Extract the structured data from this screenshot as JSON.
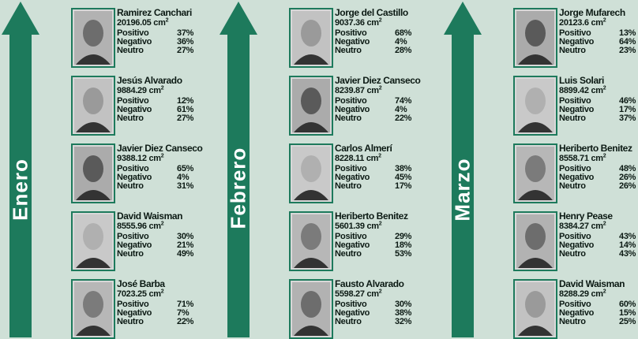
{
  "labels": {
    "positivo": "Positivo",
    "negativo": "Negativo",
    "neutro": "Neutro",
    "unit": "cm",
    "unit_exp": "2"
  },
  "months": [
    {
      "month": "Enero",
      "people": [
        {
          "name": "Ramirez Canchari",
          "area": "20196.05",
          "positivo": "37%",
          "negativo": "36%",
          "neutro": "27%"
        },
        {
          "name": "Jesús Alvarado",
          "area": "9884.29",
          "positivo": "12%",
          "negativo": "61%",
          "neutro": "27%"
        },
        {
          "name": "Javier Diez Canseco",
          "area": "9388.12",
          "positivo": "65%",
          "negativo": "4%",
          "neutro": "31%"
        },
        {
          "name": "David Waisman",
          "area": "8555.96",
          "positivo": "30%",
          "negativo": "21%",
          "neutro": "49%"
        },
        {
          "name": "José Barba",
          "area": "7023.25",
          "positivo": "71%",
          "negativo": "7%",
          "neutro": "22%"
        }
      ]
    },
    {
      "month": "Febrero",
      "people": [
        {
          "name": "Jorge del Castillo",
          "area": "9037.36",
          "positivo": "68%",
          "negativo": "4%",
          "neutro": "28%"
        },
        {
          "name": "Javier Diez Canseco",
          "area": "8239.87",
          "positivo": "74%",
          "negativo": "4%",
          "neutro": "22%"
        },
        {
          "name": "Carlos Almerí",
          "area": "8228.11",
          "positivo": "38%",
          "negativo": "45%",
          "neutro": "17%"
        },
        {
          "name": "Heriberto Benitez",
          "area": "5601.39",
          "positivo": "29%",
          "negativo": "18%",
          "neutro": "53%"
        },
        {
          "name": "Fausto Alvarado",
          "area": "5598.27",
          "positivo": "30%",
          "negativo": "38%",
          "neutro": "32%"
        }
      ]
    },
    {
      "month": "Marzo",
      "people": [
        {
          "name": "Jorge Mufarech",
          "area": "20123.6",
          "positivo": "13%",
          "negativo": "64%",
          "neutro": "23%"
        },
        {
          "name": "Luis Solari",
          "area": "8899.42",
          "positivo": "46%",
          "negativo": "17%",
          "neutro": "37%"
        },
        {
          "name": "Heriberto Benitez",
          "area": "8558.71",
          "positivo": "48%",
          "negativo": "26%",
          "neutro": "26%"
        },
        {
          "name": "Henry Pease",
          "area": "8384.27",
          "positivo": "43%",
          "negativo": "14%",
          "neutro": "43%"
        },
        {
          "name": "David Waisman",
          "area": "8288.29",
          "positivo": "60%",
          "negativo": "15%",
          "neutro": "25%"
        }
      ]
    }
  ]
}
